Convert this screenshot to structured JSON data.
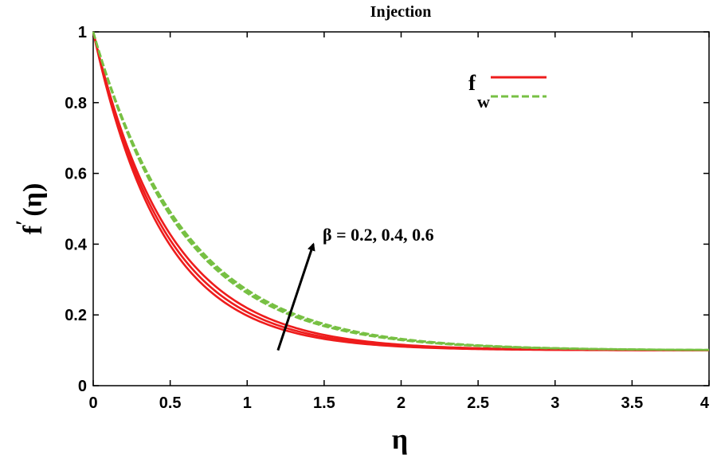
{
  "chart_data": {
    "type": "line",
    "title": "Injection",
    "xlabel": "η",
    "ylabel_main": "f",
    "ylabel_prime": "′",
    "ylabel_arg": "(η)",
    "xlim": [
      0,
      4
    ],
    "ylim": [
      0,
      1
    ],
    "xticks": [
      0,
      0.5,
      1,
      1.5,
      2,
      2.5,
      3,
      3.5,
      4
    ],
    "xtick_labels": [
      "0",
      "0.5",
      "1",
      "1.5",
      "2",
      "2.5",
      "3",
      "3.5",
      "4"
    ],
    "yticks": [
      0,
      0.2,
      0.4,
      0.6,
      0.8,
      1
    ],
    "ytick_labels": [
      "0",
      "0.2",
      "0.4",
      "0.6",
      "0.8",
      "1"
    ],
    "grid": false,
    "legend": {
      "placement": "top-right",
      "label_main": "f",
      "label_sub": "w",
      "entries": [
        {
          "style": "solid",
          "color": "#ee1c1c"
        },
        {
          "style": "dashed",
          "color": "#77c043"
        }
      ]
    },
    "annotation": {
      "text": "β = 0.2, 0.4, 0.6",
      "arrow_from": [
        1.2,
        0.1
      ],
      "arrow_to": [
        1.43,
        0.4
      ]
    },
    "curve_model": "f'(η) = fa + (1 - fa)·exp(-k·η)",
    "series": [
      {
        "name": "beta-0.2-solid",
        "style": "solid",
        "color": "#ee1c1c",
        "k": 2.22,
        "fa": 0.1
      },
      {
        "name": "beta-0.4-solid",
        "style": "solid",
        "color": "#ee1c1c",
        "k": 2.12,
        "fa": 0.1
      },
      {
        "name": "beta-0.6-solid",
        "style": "solid",
        "color": "#ee1c1c",
        "k": 2.02,
        "fa": 0.1
      },
      {
        "name": "beta-0.2-dashed",
        "style": "dashed",
        "color": "#77c043",
        "k": 1.72,
        "fa": 0.1
      },
      {
        "name": "beta-0.4-dashed",
        "style": "dashed",
        "color": "#77c043",
        "k": 1.69,
        "fa": 0.1
      },
      {
        "name": "beta-0.6-dashed",
        "style": "dashed",
        "color": "#77c043",
        "k": 1.66,
        "fa": 0.1
      }
    ]
  }
}
